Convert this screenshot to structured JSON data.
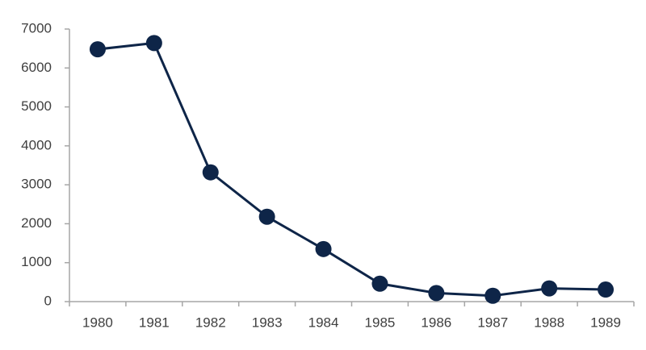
{
  "chart_data": {
    "type": "line",
    "categories": [
      "1980",
      "1981",
      "1982",
      "1983",
      "1984",
      "1985",
      "1986",
      "1987",
      "1988",
      "1989"
    ],
    "values": [
      6480,
      6640,
      3320,
      2180,
      1350,
      460,
      220,
      150,
      340,
      310
    ],
    "color": "#0e2548",
    "ylim": [
      0,
      7000
    ],
    "yticks": [
      0,
      1000,
      2000,
      3000,
      4000,
      5000,
      6000,
      7000
    ],
    "grid": false
  }
}
